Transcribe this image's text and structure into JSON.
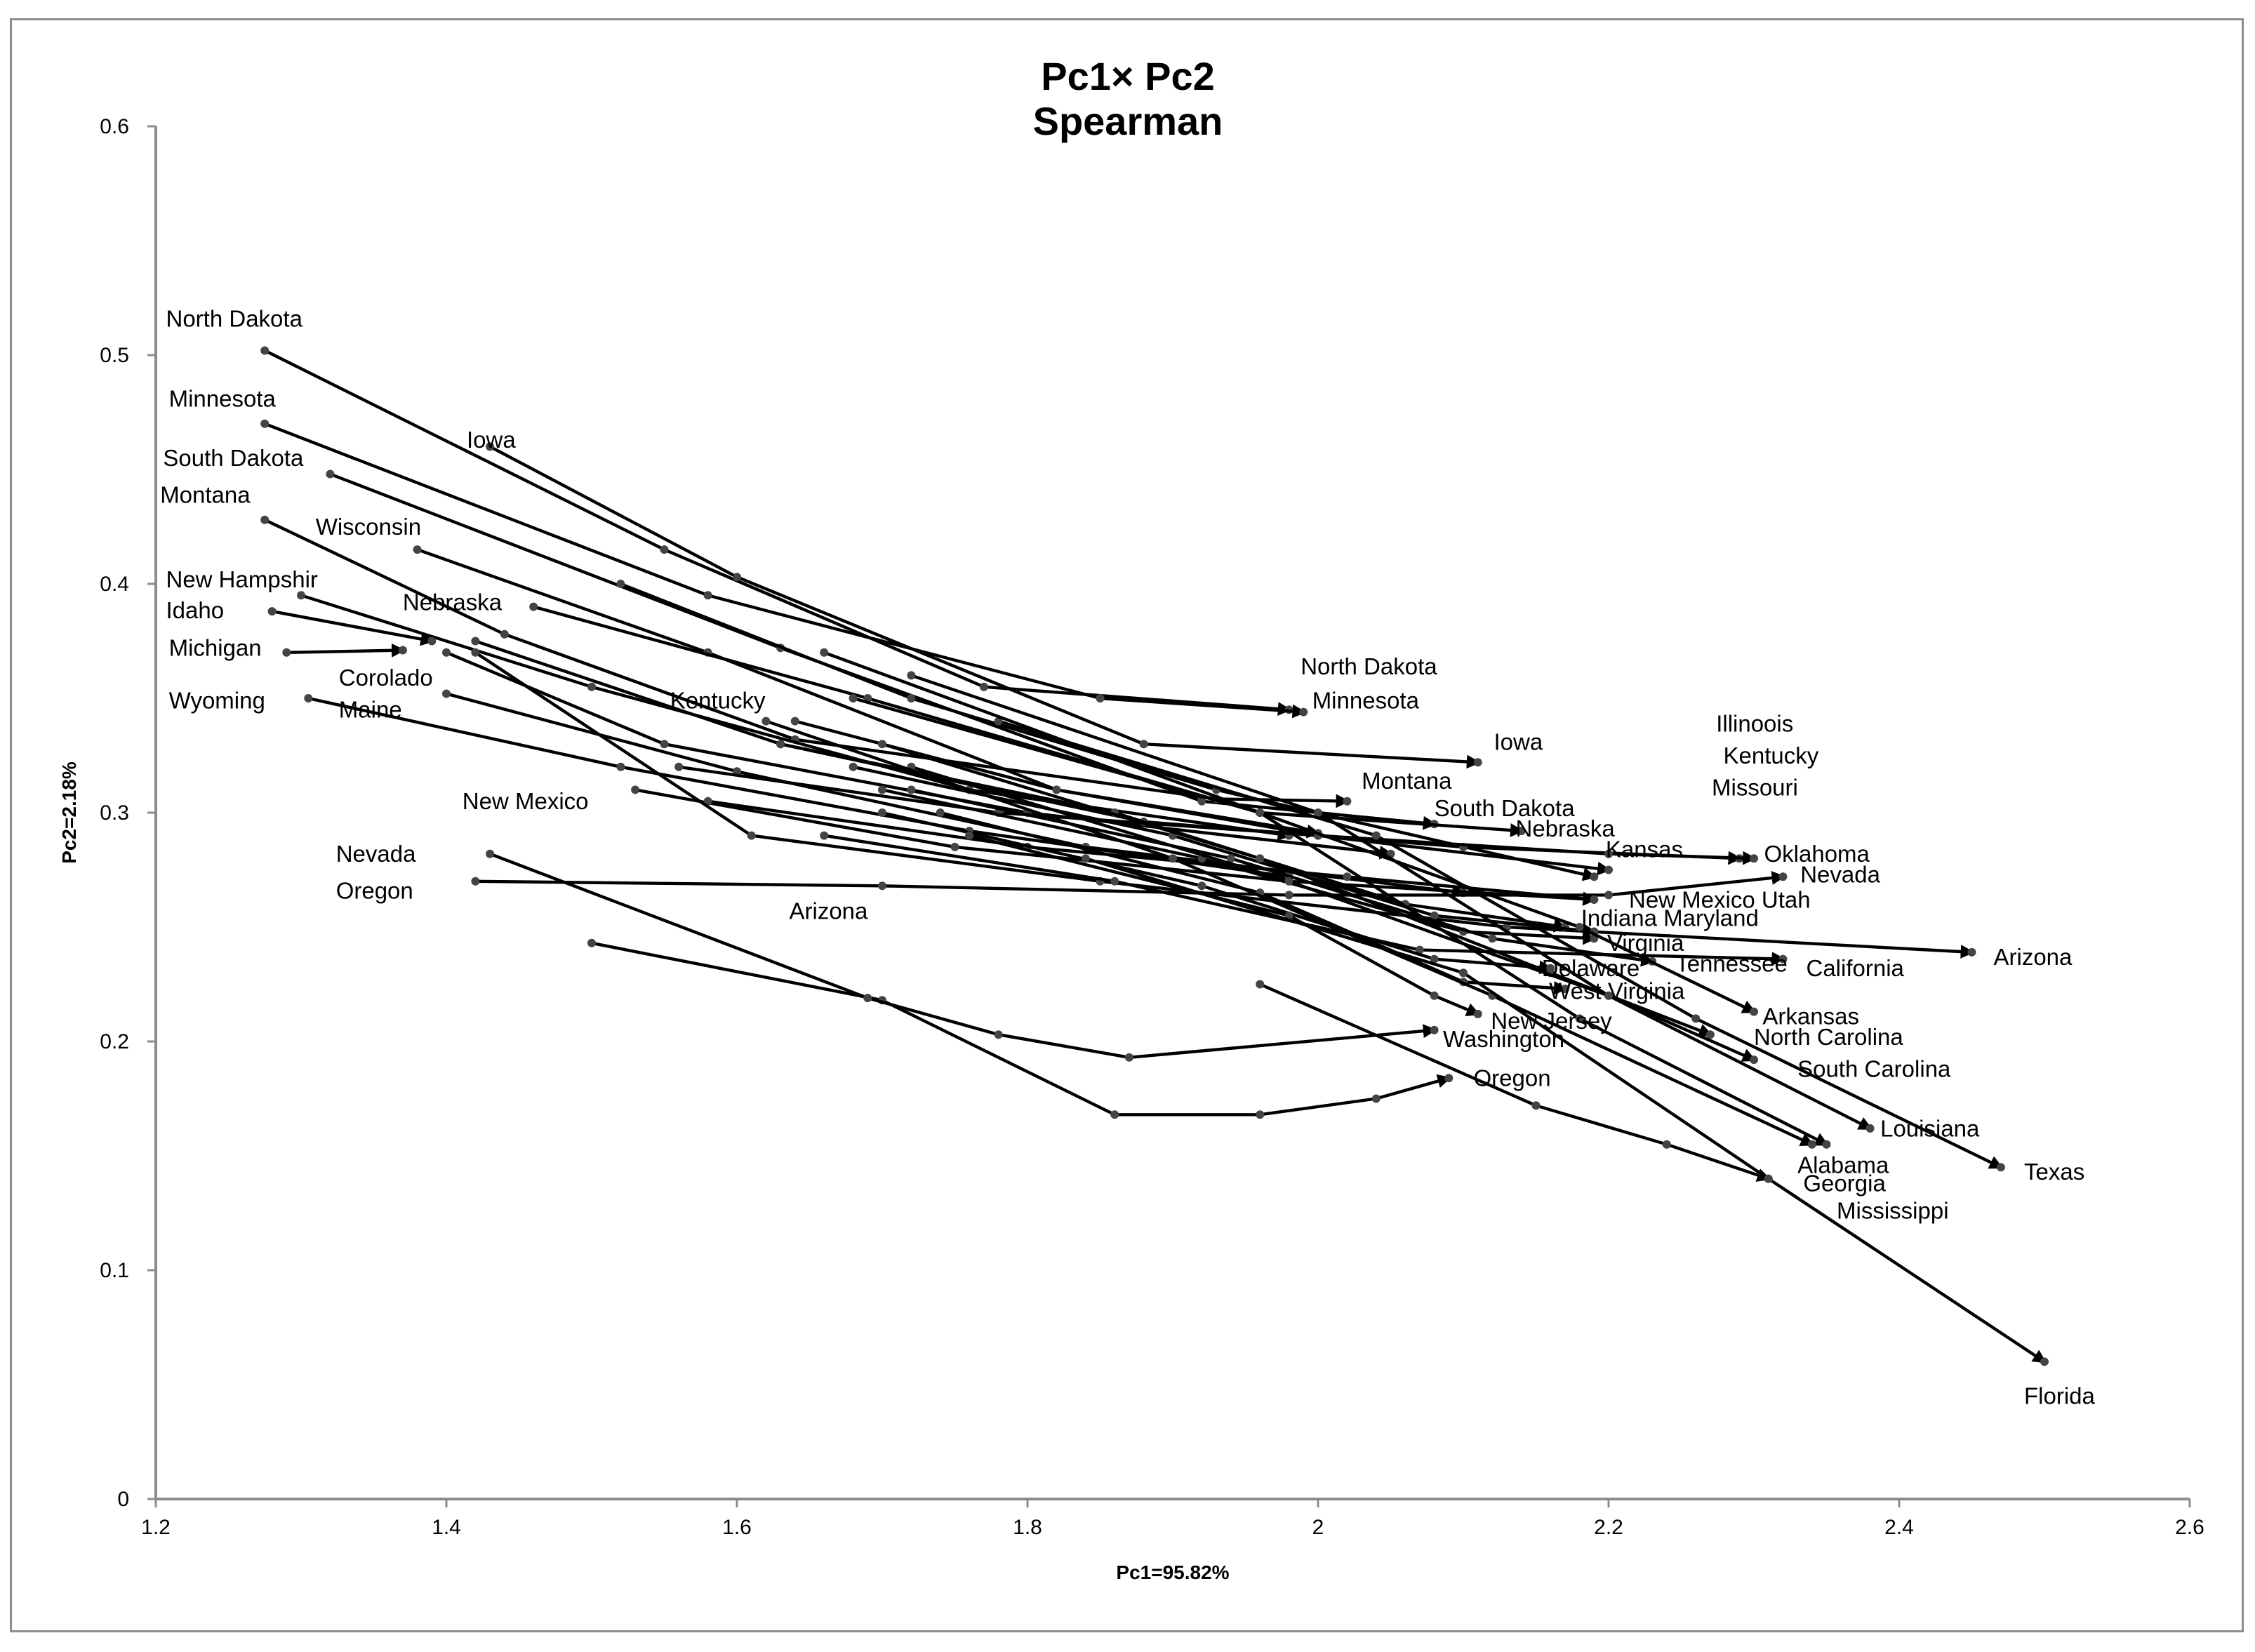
{
  "chart_data": {
    "type": "line",
    "title": [
      "Pc1× Pc2",
      "Spearman"
    ],
    "xlabel": "Pc1=95.82%",
    "ylabel": "Pc2=2.18%",
    "xlim": [
      1.2,
      2.6
    ],
    "ylim": [
      0,
      0.6
    ],
    "x_ticks": [
      "1.2",
      "1.4",
      "1.6",
      "1.8",
      "2",
      "2.2",
      "2.4",
      "2.6"
    ],
    "y_ticks": [
      "0",
      "0.1",
      "0.2",
      "0.3",
      "0.4",
      "0.5",
      "0.6"
    ],
    "grid": false,
    "legend": "none",
    "series": [
      {
        "name": "North Dakota",
        "x": [
          1.275,
          1.55,
          1.77,
          1.98
        ],
        "y": [
          0.502,
          0.415,
          0.355,
          0.345
        ]
      },
      {
        "name": "Minnesota",
        "x": [
          1.275,
          1.58,
          1.85,
          1.99
        ],
        "y": [
          0.47,
          0.395,
          0.35,
          0.344
        ]
      },
      {
        "name": "Iowa",
        "x": [
          1.43,
          1.6,
          1.88,
          2.11
        ],
        "y": [
          0.46,
          0.403,
          0.33,
          0.322
        ]
      },
      {
        "name": "South Dakota",
        "x": [
          1.32,
          1.63,
          1.92,
          2.08
        ],
        "y": [
          0.448,
          0.372,
          0.305,
          0.295
        ]
      },
      {
        "name": "Montana",
        "x": [
          1.275,
          1.44,
          1.64,
          1.93,
          2.02
        ],
        "y": [
          0.428,
          0.378,
          0.332,
          0.306,
          0.305
        ]
      },
      {
        "name": "Wisconsin",
        "x": [
          1.38,
          1.58,
          1.82,
          2.0
        ],
        "y": [
          0.415,
          0.37,
          0.31,
          0.291
        ]
      },
      {
        "name": "New Hampshire",
        "x": [
          1.3,
          1.5,
          1.76,
          1.98
        ],
        "y": [
          0.395,
          0.355,
          0.31,
          0.29
        ]
      },
      {
        "name": "Nebraska",
        "x": [
          1.46,
          1.69,
          1.96,
          2.14
        ],
        "y": [
          0.39,
          0.35,
          0.3,
          0.292
        ]
      },
      {
        "name": "Idaho",
        "x": [
          1.28,
          1.39
        ],
        "y": [
          0.388,
          0.375
        ]
      },
      {
        "name": "Michigan",
        "x": [
          1.29,
          1.37
        ],
        "y": [
          0.37,
          0.371
        ]
      },
      {
        "name": "Corolado",
        "x": [
          1.4,
          1.55,
          1.8,
          2.05
        ],
        "y": [
          0.37,
          0.33,
          0.3,
          0.282
        ]
      },
      {
        "name": "Maine",
        "x": [
          1.4,
          1.6,
          1.84,
          2.1
        ],
        "y": [
          0.352,
          0.318,
          0.285,
          0.265
        ]
      },
      {
        "name": "Wyoming",
        "x": [
          1.305,
          1.52,
          1.76,
          1.98
        ],
        "y": [
          0.35,
          0.32,
          0.292,
          0.272
        ]
      },
      {
        "name": "Kentucky",
        "x": [
          1.64,
          1.82,
          2.0,
          2.2
        ],
        "y": [
          0.34,
          0.31,
          0.29,
          0.275
        ]
      },
      {
        "name": "Illinoois",
        "x": [
          1.52,
          1.72,
          1.93,
          2.19
        ],
        "y": [
          0.4,
          0.35,
          0.31,
          0.272
        ]
      },
      {
        "name": "Missouri",
        "x": [
          1.42,
          1.63,
          1.88,
          2.1,
          2.29
        ],
        "y": [
          0.375,
          0.33,
          0.296,
          0.285,
          0.28
        ]
      },
      {
        "name": "Oklahoma",
        "x": [
          1.56,
          1.78,
          2.0,
          2.2,
          2.3
        ],
        "y": [
          0.32,
          0.3,
          0.29,
          0.282,
          0.28
        ]
      },
      {
        "name": "Nevada",
        "x": [
          1.42,
          1.7,
          1.98,
          2.2,
          2.32
        ],
        "y": [
          0.27,
          0.268,
          0.264,
          0.264,
          0.272
        ]
      },
      {
        "name": "Oregon",
        "x": [
          1.5,
          1.7,
          1.86,
          1.96,
          2.04,
          2.09
        ],
        "y": [
          0.243,
          0.218,
          0.168,
          0.168,
          0.175,
          0.184
        ]
      },
      {
        "name": "New Mexico",
        "x": [
          1.53,
          1.75,
          1.98,
          2.19
        ],
        "y": [
          0.31,
          0.285,
          0.27,
          0.262
        ]
      },
      {
        "name": "Utah",
        "x": [
          1.58,
          1.8,
          2.02,
          2.19
        ],
        "y": [
          0.305,
          0.285,
          0.272,
          0.262
        ]
      },
      {
        "name": "Arizona",
        "x": [
          1.42,
          1.61,
          1.85,
          2.13,
          2.45
        ],
        "y": [
          0.37,
          0.29,
          0.27,
          0.25,
          0.239
        ]
      },
      {
        "name": "Washington",
        "x": [
          1.43,
          1.69,
          1.78,
          1.87,
          2.08
        ],
        "y": [
          0.282,
          0.219,
          0.203,
          0.193,
          0.205
        ]
      },
      {
        "name": "California",
        "x": [
          1.66,
          1.86,
          2.07,
          2.32
        ],
        "y": [
          0.29,
          0.27,
          0.24,
          0.236
        ]
      },
      {
        "name": "Indiana",
        "x": [
          1.63,
          1.86,
          2.06,
          2.17
        ],
        "y": [
          0.33,
          0.3,
          0.26,
          0.25
        ]
      },
      {
        "name": "Maryland",
        "x": [
          1.68,
          1.9,
          2.08,
          2.19
        ],
        "y": [
          0.32,
          0.29,
          0.255,
          0.248
        ]
      },
      {
        "name": "Virginia",
        "x": [
          1.7,
          1.92,
          2.1,
          2.19
        ],
        "y": [
          0.31,
          0.28,
          0.248,
          0.245
        ]
      },
      {
        "name": "Tennessee",
        "x": [
          1.72,
          1.94,
          2.12,
          2.23
        ],
        "y": [
          0.31,
          0.28,
          0.245,
          0.235
        ]
      },
      {
        "name": "Delaware",
        "x": [
          1.7,
          1.92,
          2.08,
          2.16
        ],
        "y": [
          0.3,
          0.268,
          0.236,
          0.232
        ]
      },
      {
        "name": "West Virginia",
        "x": [
          1.74,
          1.96,
          2.1,
          2.17
        ],
        "y": [
          0.3,
          0.265,
          0.226,
          0.223
        ]
      },
      {
        "name": "New Jersey",
        "x": [
          1.76,
          1.98,
          2.08,
          2.11
        ],
        "y": [
          0.29,
          0.255,
          0.22,
          0.212
        ]
      },
      {
        "name": "Arkansas",
        "x": [
          1.68,
          1.96,
          2.18,
          2.3
        ],
        "y": [
          0.35,
          0.3,
          0.25,
          0.213
        ]
      },
      {
        "name": "North Carolina",
        "x": [
          1.7,
          1.96,
          2.16,
          2.27
        ],
        "y": [
          0.33,
          0.28,
          0.23,
          0.203
        ]
      },
      {
        "name": "South Carolina",
        "x": [
          1.72,
          1.98,
          2.2,
          2.3
        ],
        "y": [
          0.32,
          0.27,
          0.22,
          0.192
        ]
      },
      {
        "name": "Louisiana",
        "x": [
          1.72,
          2.0,
          2.2,
          2.38
        ],
        "y": [
          0.36,
          0.3,
          0.22,
          0.162
        ]
      },
      {
        "name": "Texas",
        "x": [
          1.78,
          2.04,
          2.26,
          2.47
        ],
        "y": [
          0.34,
          0.29,
          0.21,
          0.145
        ]
      },
      {
        "name": "Alabama",
        "x": [
          1.66,
          1.96,
          2.18,
          2.35
        ],
        "y": [
          0.37,
          0.3,
          0.21,
          0.155
        ]
      },
      {
        "name": "Georgia",
        "x": [
          1.96,
          2.15,
          2.24,
          2.31
        ],
        "y": [
          0.225,
          0.172,
          0.155,
          0.14
        ]
      },
      {
        "name": "Mississippi",
        "x": [
          1.62,
          1.9,
          2.12,
          2.34
        ],
        "y": [
          0.34,
          0.28,
          0.22,
          0.155
        ]
      },
      {
        "name": "Florida",
        "x": [
          1.84,
          2.1,
          2.31,
          2.5
        ],
        "y": [
          0.28,
          0.23,
          0.14,
          0.06
        ]
      }
    ],
    "labels": [
      {
        "text": "North Dakota",
        "x": 1.207,
        "y": 0.5125
      },
      {
        "text": "Iowa",
        "x": 1.414,
        "y": 0.4595
      },
      {
        "text": "Minnesota",
        "x": 1.209,
        "y": 0.4775
      },
      {
        "text": "South Dakota",
        "x": 1.205,
        "y": 0.4515
      },
      {
        "text": "Montana",
        "x": 1.203,
        "y": 0.4355
      },
      {
        "text": "Wisconsin",
        "x": 1.31,
        "y": 0.4215
      },
      {
        "text": "New Hampshir",
        "x": 1.207,
        "y": 0.3985
      },
      {
        "text": "Idaho",
        "x": 1.207,
        "y": 0.385
      },
      {
        "text": "Nebraska",
        "x": 1.37,
        "y": 0.3885
      },
      {
        "text": "Michigan",
        "x": 1.209,
        "y": 0.3685
      },
      {
        "text": "Corolado",
        "x": 1.326,
        "y": 0.3555
      },
      {
        "text": "Wyoming",
        "x": 1.209,
        "y": 0.3455
      },
      {
        "text": "Maine",
        "x": 1.326,
        "y": 0.3415
      },
      {
        "text": "Kentucky",
        "x": 1.554,
        "y": 0.3455
      },
      {
        "text": "New Mexico",
        "x": 1.411,
        "y": 0.3015
      },
      {
        "text": "Nevada",
        "x": 1.324,
        "y": 0.2785
      },
      {
        "text": "Oregon",
        "x": 1.324,
        "y": 0.2625
      },
      {
        "text": "Arizona",
        "x": 1.636,
        "y": 0.2535
      },
      {
        "text": "North Dakota",
        "x": 1.988,
        "y": 0.3605
      },
      {
        "text": "Minnesota",
        "x": 1.996,
        "y": 0.3455
      },
      {
        "text": "Iowa",
        "x": 2.121,
        "y": 0.3275
      },
      {
        "text": "Montana",
        "x": 2.03,
        "y": 0.3105
      },
      {
        "text": "South Dakota",
        "x": 2.08,
        "y": 0.2985
      },
      {
        "text": "Nebraska",
        "x": 2.136,
        "y": 0.2895
      },
      {
        "text": "Kansas",
        "x": 2.198,
        "y": 0.2805
      },
      {
        "text": "Illinoois",
        "x": 2.274,
        "y": 0.3355
      },
      {
        "text": "Kentucky",
        "x": 2.279,
        "y": 0.3215
      },
      {
        "text": "Missouri",
        "x": 2.271,
        "y": 0.3075
      },
      {
        "text": "Oklahoma",
        "x": 2.307,
        "y": 0.2785
      },
      {
        "text": "Nevada",
        "x": 2.332,
        "y": 0.2695
      },
      {
        "text": "New Mexico Utah",
        "x": 2.214,
        "y": 0.2585
      },
      {
        "text": "Indiana Maryland",
        "x": 2.181,
        "y": 0.2505
      },
      {
        "text": "Arizona",
        "x": 2.465,
        "y": 0.2335
      },
      {
        "text": "Virginia",
        "x": 2.199,
        "y": 0.2395
      },
      {
        "text": "California",
        "x": 2.336,
        "y": 0.2285
      },
      {
        "text": "Tennessee",
        "x": 2.246,
        "y": 0.2305
      },
      {
        "text": "Delaware",
        "x": 2.154,
        "y": 0.2285
      },
      {
        "text": "West Virginia",
        "x": 2.159,
        "y": 0.2185
      },
      {
        "text": "Arkansas",
        "x": 2.306,
        "y": 0.2075
      },
      {
        "text": "New Jersey",
        "x": 2.119,
        "y": 0.2055
      },
      {
        "text": "North Carolina",
        "x": 2.3,
        "y": 0.1985
      },
      {
        "text": "Washington",
        "x": 2.086,
        "y": 0.1975
      },
      {
        "text": "South Carolina",
        "x": 2.33,
        "y": 0.1845
      },
      {
        "text": "Oregon",
        "x": 2.107,
        "y": 0.1805
      },
      {
        "text": "Louisiana",
        "x": 2.387,
        "y": 0.1585
      },
      {
        "text": "Alabama",
        "x": 2.33,
        "y": 0.1425
      },
      {
        "text": "Texas",
        "x": 2.486,
        "y": 0.1395
      },
      {
        "text": "Georgia",
        "x": 2.334,
        "y": 0.1345
      },
      {
        "text": "Mississippi",
        "x": 2.357,
        "y": 0.1225
      },
      {
        "text": "Florida",
        "x": 2.486,
        "y": 0.0415
      }
    ]
  }
}
